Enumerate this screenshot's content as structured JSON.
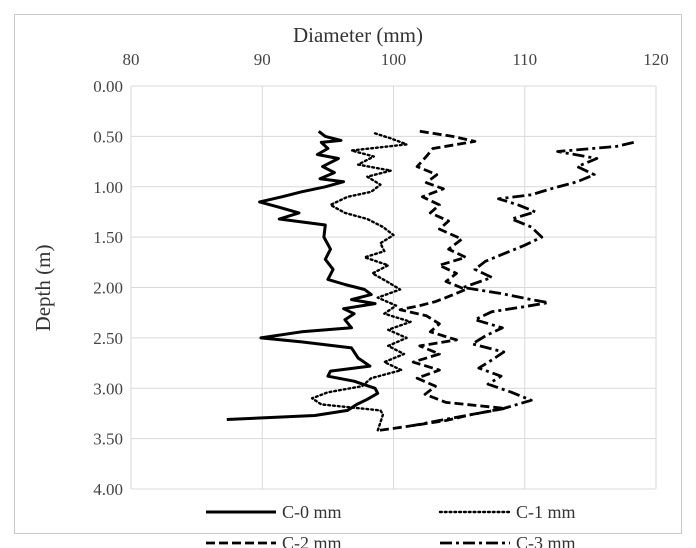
{
  "chart_data": {
    "type": "line",
    "title": "",
    "xlabel": "Diameter (mm)",
    "ylabel": "Depth (m)",
    "xlim": [
      80,
      120
    ],
    "ylim": [
      0,
      4
    ],
    "y_reversed": true,
    "x_axis_position": "top",
    "x_ticks": [
      "80",
      "90",
      "100",
      "110",
      "120"
    ],
    "y_ticks": [
      "0.00",
      "0.50",
      "1.00",
      "1.50",
      "2.00",
      "2.50",
      "3.00",
      "3.50",
      "4.00"
    ],
    "grid": true,
    "legend_position": "bottom",
    "series": [
      {
        "name": "C-0 mm",
        "style": "solid",
        "color": "#000000",
        "points": [
          [
            94.3,
            0.45
          ],
          [
            94.8,
            0.5
          ],
          [
            96.0,
            0.54
          ],
          [
            94.5,
            0.56
          ],
          [
            95.0,
            0.62
          ],
          [
            94.2,
            0.68
          ],
          [
            95.8,
            0.72
          ],
          [
            94.6,
            0.8
          ],
          [
            95.5,
            0.86
          ],
          [
            94.4,
            0.92
          ],
          [
            96.2,
            0.95
          ],
          [
            94.8,
            1.0
          ],
          [
            93.0,
            1.05
          ],
          [
            91.5,
            1.1
          ],
          [
            89.8,
            1.15
          ],
          [
            91.2,
            1.2
          ],
          [
            92.8,
            1.26
          ],
          [
            91.3,
            1.32
          ],
          [
            94.8,
            1.38
          ],
          [
            94.7,
            1.5
          ],
          [
            95.2,
            1.62
          ],
          [
            94.8,
            1.72
          ],
          [
            95.4,
            1.82
          ],
          [
            95.0,
            1.92
          ],
          [
            96.3,
            1.97
          ],
          [
            97.8,
            2.02
          ],
          [
            98.3,
            2.07
          ],
          [
            96.8,
            2.12
          ],
          [
            98.6,
            2.16
          ],
          [
            96.2,
            2.21
          ],
          [
            97.0,
            2.26
          ],
          [
            96.3,
            2.32
          ],
          [
            96.8,
            2.4
          ],
          [
            93.0,
            2.44
          ],
          [
            89.9,
            2.5
          ],
          [
            93.0,
            2.54
          ],
          [
            96.8,
            2.6
          ],
          [
            97.3,
            2.7
          ],
          [
            98.2,
            2.78
          ],
          [
            95.2,
            2.83
          ],
          [
            95.0,
            2.88
          ],
          [
            97.0,
            2.93
          ],
          [
            98.6,
            3.0
          ],
          [
            98.8,
            3.05
          ],
          [
            98.0,
            3.11
          ],
          [
            97.2,
            3.16
          ],
          [
            96.5,
            3.22
          ],
          [
            94.0,
            3.27
          ],
          [
            87.3,
            3.31
          ]
        ]
      },
      {
        "name": "C-1 mm",
        "style": "dotted",
        "color": "#000000",
        "points": [
          [
            98.6,
            0.47
          ],
          [
            99.8,
            0.52
          ],
          [
            101.0,
            0.58
          ],
          [
            96.8,
            0.64
          ],
          [
            98.5,
            0.7
          ],
          [
            97.3,
            0.78
          ],
          [
            99.8,
            0.84
          ],
          [
            98.0,
            0.9
          ],
          [
            99.0,
            0.98
          ],
          [
            98.3,
            1.05
          ],
          [
            96.5,
            1.1
          ],
          [
            95.2,
            1.18
          ],
          [
            96.3,
            1.26
          ],
          [
            98.0,
            1.32
          ],
          [
            99.2,
            1.4
          ],
          [
            100.0,
            1.48
          ],
          [
            99.0,
            1.56
          ],
          [
            99.3,
            1.64
          ],
          [
            97.8,
            1.7
          ],
          [
            99.6,
            1.78
          ],
          [
            98.4,
            1.86
          ],
          [
            99.5,
            1.94
          ],
          [
            100.5,
            2.02
          ],
          [
            98.8,
            2.1
          ],
          [
            100.2,
            2.18
          ],
          [
            99.3,
            2.26
          ],
          [
            101.3,
            2.34
          ],
          [
            99.6,
            2.42
          ],
          [
            101.0,
            2.5
          ],
          [
            99.6,
            2.58
          ],
          [
            100.8,
            2.66
          ],
          [
            99.3,
            2.74
          ],
          [
            100.6,
            2.82
          ],
          [
            98.3,
            2.9
          ],
          [
            97.6,
            2.98
          ],
          [
            95.0,
            3.04
          ],
          [
            93.8,
            3.1
          ],
          [
            94.5,
            3.16
          ],
          [
            99.0,
            3.22
          ],
          [
            99.2,
            3.26
          ],
          [
            99.0,
            3.34
          ],
          [
            98.8,
            3.42
          ]
        ]
      },
      {
        "name": "C-2 mm",
        "style": "dashed",
        "color": "#000000",
        "points": [
          [
            102.0,
            0.45
          ],
          [
            104.5,
            0.5
          ],
          [
            106.2,
            0.55
          ],
          [
            103.0,
            0.62
          ],
          [
            102.5,
            0.7
          ],
          [
            101.8,
            0.8
          ],
          [
            103.3,
            0.88
          ],
          [
            102.5,
            0.96
          ],
          [
            103.8,
            1.02
          ],
          [
            102.2,
            1.1
          ],
          [
            103.5,
            1.18
          ],
          [
            102.8,
            1.26
          ],
          [
            104.2,
            1.34
          ],
          [
            103.5,
            1.42
          ],
          [
            105.2,
            1.52
          ],
          [
            104.2,
            1.62
          ],
          [
            105.5,
            1.7
          ],
          [
            103.5,
            1.78
          ],
          [
            104.8,
            1.86
          ],
          [
            104.0,
            1.94
          ],
          [
            105.5,
            2.02
          ],
          [
            104.0,
            2.1
          ],
          [
            103.2,
            2.14
          ],
          [
            102.0,
            2.18
          ],
          [
            100.5,
            2.22
          ],
          [
            102.5,
            2.28
          ],
          [
            103.5,
            2.36
          ],
          [
            102.8,
            2.44
          ],
          [
            104.8,
            2.52
          ],
          [
            102.0,
            2.58
          ],
          [
            103.5,
            2.66
          ],
          [
            101.5,
            2.74
          ],
          [
            103.5,
            2.82
          ],
          [
            101.8,
            2.9
          ],
          [
            103.2,
            2.98
          ],
          [
            102.4,
            3.06
          ],
          [
            104.0,
            3.14
          ],
          [
            108.5,
            3.2
          ],
          [
            106.0,
            3.26
          ],
          [
            104.0,
            3.32
          ],
          [
            101.0,
            3.38
          ],
          [
            98.8,
            3.42
          ]
        ]
      },
      {
        "name": "C-3 mm",
        "style": "dashdot",
        "color": "#000000",
        "points": [
          [
            118.3,
            0.56
          ],
          [
            117.0,
            0.6
          ],
          [
            112.5,
            0.65
          ],
          [
            115.5,
            0.72
          ],
          [
            114.0,
            0.8
          ],
          [
            115.3,
            0.88
          ],
          [
            114.0,
            0.95
          ],
          [
            112.0,
            1.02
          ],
          [
            110.5,
            1.08
          ],
          [
            108.0,
            1.12
          ],
          [
            109.5,
            1.18
          ],
          [
            110.8,
            1.25
          ],
          [
            109.0,
            1.32
          ],
          [
            110.5,
            1.4
          ],
          [
            111.3,
            1.5
          ],
          [
            110.0,
            1.58
          ],
          [
            108.5,
            1.66
          ],
          [
            107.0,
            1.74
          ],
          [
            106.2,
            1.82
          ],
          [
            107.5,
            1.9
          ],
          [
            105.3,
            2.0
          ],
          [
            108.2,
            2.06
          ],
          [
            110.5,
            2.12
          ],
          [
            111.8,
            2.15
          ],
          [
            110.0,
            2.19
          ],
          [
            107.5,
            2.24
          ],
          [
            106.2,
            2.32
          ],
          [
            108.3,
            2.4
          ],
          [
            107.0,
            2.48
          ],
          [
            106.0,
            2.56
          ],
          [
            108.4,
            2.64
          ],
          [
            107.5,
            2.72
          ],
          [
            106.5,
            2.8
          ],
          [
            108.2,
            2.88
          ],
          [
            107.2,
            2.96
          ],
          [
            109.0,
            3.04
          ],
          [
            110.5,
            3.12
          ],
          [
            108.4,
            3.2
          ],
          [
            106.0,
            3.26
          ],
          [
            103.5,
            3.32
          ],
          [
            101.5,
            3.37
          ]
        ]
      }
    ]
  }
}
